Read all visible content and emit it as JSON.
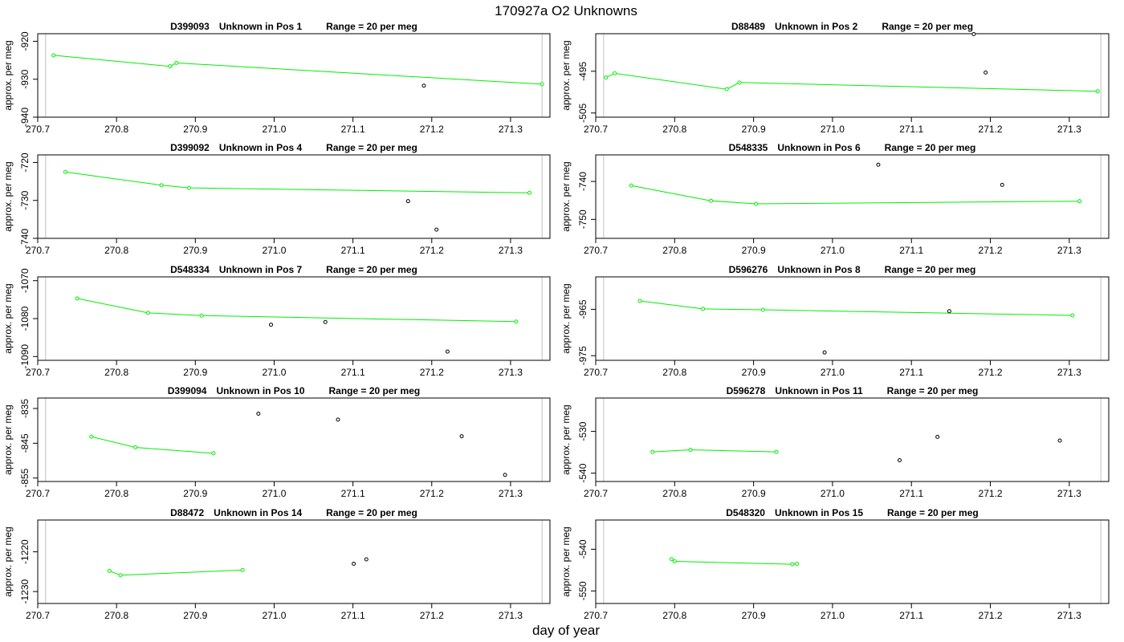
{
  "title": "170927a  O2 Unknowns",
  "xlabel": "day of year",
  "colors": {
    "line": "#00ee00",
    "outlier": "#000000",
    "frame": "#000000",
    "guide": "#c0c0c0"
  },
  "chart_data": {
    "type": "line",
    "layout": "5 rows x 2 columns",
    "xlim": [
      270.7,
      271.35
    ],
    "xticks": [
      270.7,
      270.8,
      270.9,
      271.0,
      271.1,
      271.2,
      271.3
    ],
    "xtick_labels": [
      "270.7",
      "270.8",
      "270.9",
      "271.0",
      "271.1",
      "271.2",
      "271.3"
    ],
    "guide_lines_x": [
      270.71,
      271.34
    ],
    "panels": [
      {
        "id": "D399093",
        "label": "Unknown in Pos 1",
        "range_text": "Range = 20 per meg",
        "ylabel": "approx. per meg",
        "ylim": [
          -940,
          -918
        ],
        "yticks": [
          -920,
          -930,
          -940
        ],
        "ytick_labels": [
          "-920",
          "-930",
          "-940"
        ],
        "line": [
          [
            270.72,
            -923.7
          ],
          [
            270.868,
            -926.6
          ],
          [
            270.876,
            -925.7
          ],
          [
            271.34,
            -931.3
          ]
        ],
        "outliers": [
          [
            271.19,
            -931.7
          ]
        ]
      },
      {
        "id": "D88489",
        "label": "Unknown in Pos 2",
        "range_text": "Range = 20 per meg",
        "ylabel": "approx. per meg",
        "ylim": [
          -506,
          -486
        ],
        "yticks": [
          -495,
          -505
        ],
        "ytick_labels": [
          "-495",
          "-505"
        ],
        "line": [
          [
            270.713,
            -496.5
          ],
          [
            270.724,
            -495.5
          ],
          [
            270.866,
            -499.3
          ],
          [
            270.882,
            -497.7
          ],
          [
            271.336,
            -499.8
          ]
        ],
        "outliers": [
          [
            271.179,
            -486.1
          ],
          [
            271.194,
            -495.3
          ]
        ]
      },
      {
        "id": "D399092",
        "label": "Unknown in Pos 4",
        "range_text": "Range = 20 per meg",
        "ylabel": "approx. per meg",
        "ylim": [
          -740,
          -718
        ],
        "yticks": [
          -720,
          -730,
          -740
        ],
        "ytick_labels": [
          "-720",
          "-730",
          "-740"
        ],
        "line": [
          [
            270.735,
            -722.5
          ],
          [
            270.857,
            -726.0
          ],
          [
            270.892,
            -726.7
          ],
          [
            271.324,
            -728.0
          ]
        ],
        "outliers": [
          [
            271.17,
            -730.2
          ],
          [
            271.206,
            -737.7
          ]
        ]
      },
      {
        "id": "D548335",
        "label": "Unknown in Pos 6",
        "range_text": "Range = 20 per meg",
        "ylabel": "approx. per meg",
        "ylim": [
          -755,
          -733
        ],
        "yticks": [
          -740,
          -750
        ],
        "ytick_labels": [
          "-740",
          "-750"
        ],
        "line": [
          [
            270.745,
            -741.1
          ],
          [
            270.846,
            -745.1
          ],
          [
            270.903,
            -745.9
          ],
          [
            271.313,
            -745.2
          ]
        ],
        "outliers": [
          [
            271.058,
            -735.6
          ],
          [
            271.215,
            -740.9
          ]
        ]
      },
      {
        "id": "D548334",
        "label": "Unknown in Pos 7",
        "range_text": "Range = 20 per meg",
        "ylabel": "approx. per meg",
        "ylim": [
          -1091,
          -1069
        ],
        "yticks": [
          -1070,
          -1080,
          -1090
        ],
        "ytick_labels": [
          "-1070",
          "-1080",
          "-1090"
        ],
        "line": [
          [
            270.75,
            -1074.7
          ],
          [
            270.84,
            -1078.5
          ],
          [
            270.908,
            -1079.2
          ],
          [
            271.307,
            -1080.8
          ]
        ],
        "outliers": [
          [
            270.996,
            -1081.6
          ],
          [
            271.065,
            -1080.9
          ],
          [
            271.22,
            -1088.7
          ]
        ]
      },
      {
        "id": "D596276",
        "label": "Unknown in Pos 8",
        "range_text": "Range = 20 per meg",
        "ylabel": "approx. per meg",
        "ylim": [
          -976,
          -958
        ],
        "yticks": [
          -965,
          -975
        ],
        "ytick_labels": [
          "-965",
          "-975"
        ],
        "line": [
          [
            270.756,
            -963.2
          ],
          [
            270.836,
            -964.9
          ],
          [
            270.912,
            -965.1
          ],
          [
            271.304,
            -966.3
          ]
        ],
        "outliers": [
          [
            270.99,
            -974.3
          ],
          [
            271.148,
            -965.4
          ]
        ]
      },
      {
        "id": "D399094",
        "label": "Unknown in Pos 10",
        "range_text": "Range = 20 per meg",
        "ylabel": "approx. per meg",
        "ylim": [
          -856,
          -832
        ],
        "yticks": [
          -835,
          -845,
          -855
        ],
        "ytick_labels": [
          "-835",
          "-845",
          "-855"
        ],
        "line": [
          [
            270.768,
            -843.1
          ],
          [
            270.824,
            -846.2
          ],
          [
            270.923,
            -847.9
          ]
        ],
        "outliers": [
          [
            270.98,
            -836.5
          ],
          [
            271.081,
            -838.2
          ],
          [
            271.238,
            -843.0
          ],
          [
            271.293,
            -854.1
          ]
        ]
      },
      {
        "id": "D596278",
        "label": "Unknown in Pos 11",
        "range_text": "Range = 20 per meg",
        "ylabel": "approx. per meg",
        "ylim": [
          -542,
          -522
        ],
        "yticks": [
          -530,
          -540
        ],
        "ytick_labels": [
          "-530",
          "-540"
        ],
        "line": [
          [
            270.772,
            -534.9
          ],
          [
            270.82,
            -534.4
          ],
          [
            270.929,
            -534.9
          ]
        ],
        "outliers": [
          [
            271.085,
            -536.9
          ],
          [
            271.133,
            -531.3
          ],
          [
            271.288,
            -532.2
          ]
        ]
      },
      {
        "id": "D88472",
        "label": "Unknown in Pos 14",
        "range_text": "Range = 20 per meg",
        "ylabel": "approx. per meg",
        "ylim": [
          -1233,
          -1212
        ],
        "yticks": [
          -1220,
          -1230
        ],
        "ytick_labels": [
          "-1220",
          "-1230"
        ],
        "line": [
          [
            270.791,
            -1224.8
          ],
          [
            270.805,
            -1225.9
          ],
          [
            270.96,
            -1224.6
          ]
        ],
        "outliers": [
          [
            271.101,
            -1223.0
          ],
          [
            271.117,
            -1221.9
          ]
        ]
      },
      {
        "id": "D548320",
        "label": "Unknown in Pos 15",
        "range_text": "Range = 20 per meg",
        "ylabel": "approx. per meg",
        "ylim": [
          -553,
          -533
        ],
        "yticks": [
          -540,
          -550
        ],
        "ytick_labels": [
          "-540",
          "-550"
        ],
        "line": [
          [
            270.796,
            -542.4
          ],
          [
            270.8,
            -542.9
          ],
          [
            270.949,
            -543.6
          ],
          [
            270.955,
            -543.5
          ]
        ],
        "outliers": []
      }
    ]
  }
}
